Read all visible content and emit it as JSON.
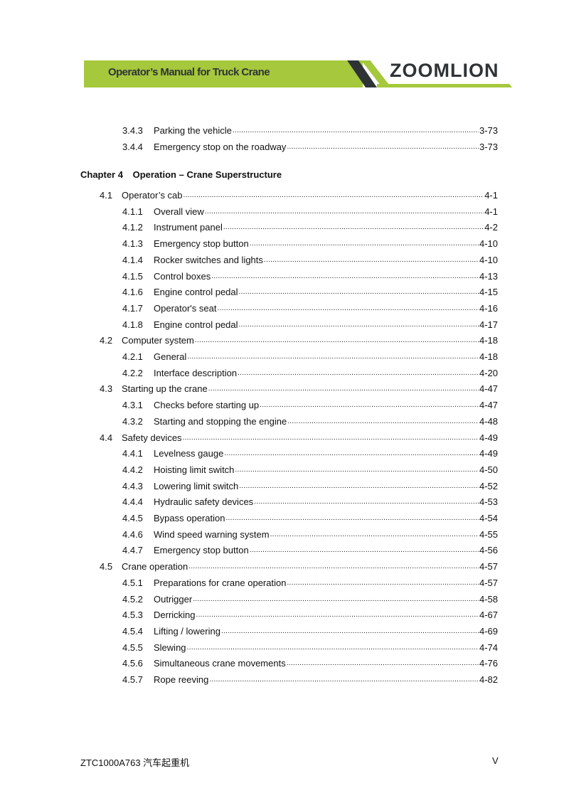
{
  "header": {
    "title": "Operator’s Manual for Truck Crane",
    "logo": "ZOOMLION",
    "accent": "#a5c83c",
    "dark": "#2f3336"
  },
  "entries_before": [
    {
      "level": 3,
      "num": "3.4.3",
      "title": "Parking the vehicle",
      "page": "3-73"
    },
    {
      "level": 3,
      "num": "3.4.4",
      "title": "Emergency stop on the roadway",
      "page": "3-73"
    }
  ],
  "chapter": {
    "label": "Chapter 4",
    "title": "Operation – Crane Superstructure"
  },
  "entries": [
    {
      "level": 2,
      "num": "4.1",
      "title": "Operator’s cab",
      "page": "4-1"
    },
    {
      "level": 3,
      "num": "4.1.1",
      "title": "Overall view",
      "page": "4-1"
    },
    {
      "level": 3,
      "num": "4.1.2",
      "title": "Instrument panel",
      "page": "4-2"
    },
    {
      "level": 3,
      "num": "4.1.3",
      "title": "Emergency stop button",
      "page": "4-10"
    },
    {
      "level": 3,
      "num": "4.1.4",
      "title": "Rocker switches and lights",
      "page": "4-10"
    },
    {
      "level": 3,
      "num": "4.1.5",
      "title": "Control boxes",
      "page": "4-13"
    },
    {
      "level": 3,
      "num": "4.1.6",
      "title": "Engine control pedal",
      "page": "4-15"
    },
    {
      "level": 3,
      "num": "4.1.7",
      "title": "Operator's seat",
      "page": "4-16"
    },
    {
      "level": 3,
      "num": "4.1.8",
      "title": "Engine control pedal",
      "page": "4-17"
    },
    {
      "level": 2,
      "num": "4.2",
      "title": "Computer system",
      "page": "4-18"
    },
    {
      "level": 3,
      "num": "4.2.1",
      "title": "General",
      "page": "4-18"
    },
    {
      "level": 3,
      "num": "4.2.2",
      "title": "Interface description",
      "page": "4-20"
    },
    {
      "level": 2,
      "num": "4.3",
      "title": "Starting up the crane",
      "page": "4-47"
    },
    {
      "level": 3,
      "num": "4.3.1",
      "title": "Checks before starting up",
      "page": "4-47"
    },
    {
      "level": 3,
      "num": "4.3.2",
      "title": "Starting and stopping the engine",
      "page": "4-48"
    },
    {
      "level": 2,
      "num": "4.4",
      "title": "Safety devices",
      "page": "4-49"
    },
    {
      "level": 3,
      "num": "4.4.1",
      "title": "Levelness gauge",
      "page": "4-49"
    },
    {
      "level": 3,
      "num": "4.4.2",
      "title": "Hoisting limit switch",
      "page": "4-50"
    },
    {
      "level": 3,
      "num": "4.4.3",
      "title": "Lowering limit switch",
      "page": "4-52"
    },
    {
      "level": 3,
      "num": "4.4.4",
      "title": "Hydraulic safety devices",
      "page": "4-53"
    },
    {
      "level": 3,
      "num": "4.4.5",
      "title": "Bypass operation",
      "page": "4-54"
    },
    {
      "level": 3,
      "num": "4.4.6",
      "title": "Wind speed warning system",
      "page": "4-55"
    },
    {
      "level": 3,
      "num": "4.4.7",
      "title": "Emergency stop button",
      "page": "4-56"
    },
    {
      "level": 2,
      "num": "4.5",
      "title": "Crane operation",
      "page": "4-57"
    },
    {
      "level": 3,
      "num": "4.5.1",
      "title": "Preparations for crane operation",
      "page": "4-57"
    },
    {
      "level": 3,
      "num": "4.5.2",
      "title": "Outrigger",
      "page": "4-58"
    },
    {
      "level": 3,
      "num": "4.5.3",
      "title": "Derricking",
      "page": "4-67"
    },
    {
      "level": 3,
      "num": "4.5.4",
      "title": "Lifting / lowering",
      "page": "4-69"
    },
    {
      "level": 3,
      "num": "4.5.5",
      "title": "Slewing",
      "page": "4-74"
    },
    {
      "level": 3,
      "num": "4.5.6",
      "title": "Simultaneous crane movements",
      "page": "4-76"
    },
    {
      "level": 3,
      "num": "4.5.7",
      "title": "Rope reeving",
      "page": "4-82"
    }
  ],
  "footer": {
    "left": "ZTC1000A763 汽车起重机",
    "right": "V"
  }
}
